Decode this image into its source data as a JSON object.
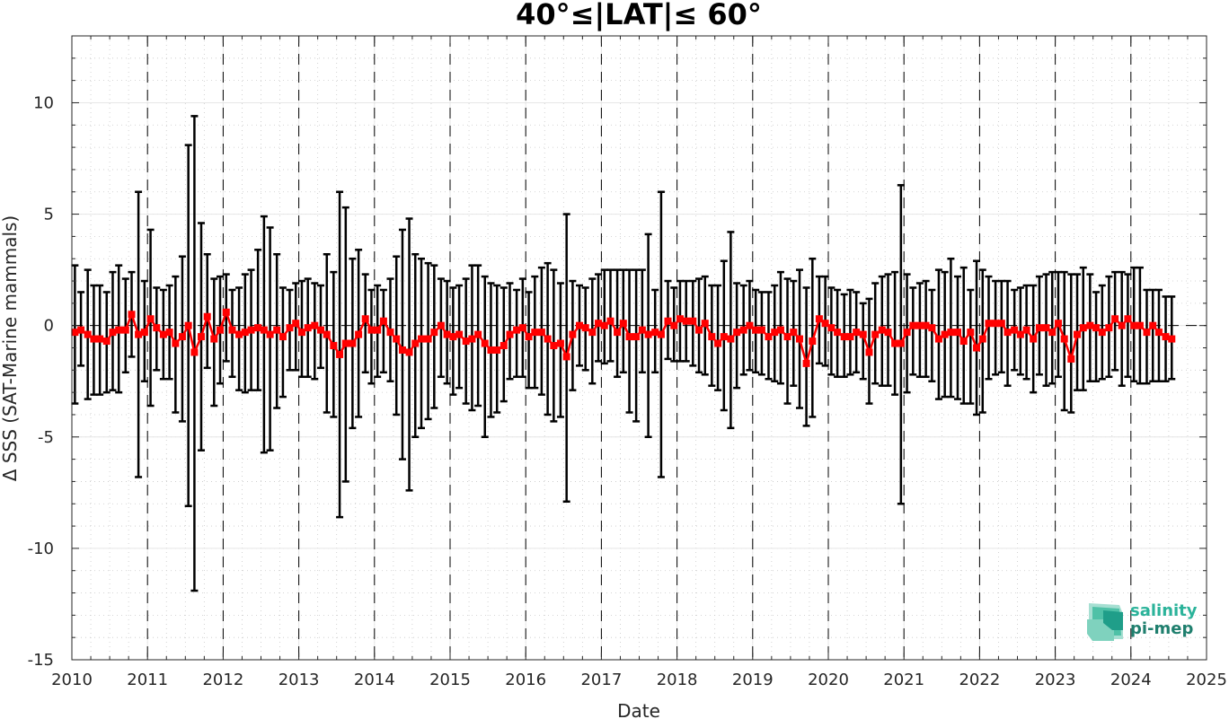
{
  "chart_data": {
    "type": "line",
    "title": "40°≤|LAT|≤ 60°",
    "xlabel": "Date",
    "ylabel": "Δ SSS (SAT-Marine mammals)",
    "xlim": [
      2010,
      2025
    ],
    "ylim": [
      -15,
      13
    ],
    "xticks": [
      "2010",
      "2011",
      "2012",
      "2013",
      "2014",
      "2015",
      "2016",
      "2017",
      "2018",
      "2019",
      "2020",
      "2021",
      "2022",
      "2023",
      "2024",
      "2025"
    ],
    "yticks": [
      "-15",
      "-10",
      "-5",
      "0",
      "5",
      "10"
    ],
    "year_dividers": [
      2011,
      2012,
      2013,
      2014,
      2015,
      2016,
      2017,
      2018,
      2019,
      2020,
      2021,
      2022,
      2023,
      2024
    ],
    "reference_line": 0,
    "grid": "on (minor dotted)",
    "series": [
      {
        "marker": "square",
        "color": "#ff0000",
        "errorbar_color": "#000000",
        "points": [
          [
            2010.04,
            -0.3,
            -3.5,
            2.7
          ],
          [
            2010.12,
            -0.2,
            -1.8,
            1.5
          ],
          [
            2010.21,
            -0.4,
            -3.3,
            2.5
          ],
          [
            2010.29,
            -0.6,
            -3.1,
            1.8
          ],
          [
            2010.37,
            -0.6,
            -3.1,
            1.8
          ],
          [
            2010.46,
            -0.7,
            -3.0,
            1.5
          ],
          [
            2010.54,
            -0.3,
            -2.9,
            2.4
          ],
          [
            2010.62,
            -0.2,
            -3.0,
            2.7
          ],
          [
            2010.71,
            -0.2,
            -2.1,
            2.1
          ],
          [
            2010.79,
            0.5,
            -1.4,
            2.4
          ],
          [
            2010.88,
            -0.4,
            -6.8,
            6.0
          ],
          [
            2010.96,
            -0.3,
            -2.5,
            2.0
          ],
          [
            2011.04,
            0.3,
            -3.6,
            4.3
          ],
          [
            2011.12,
            -0.1,
            -2.0,
            1.7
          ],
          [
            2011.21,
            -0.4,
            -2.4,
            1.6
          ],
          [
            2011.29,
            -0.3,
            -2.4,
            1.8
          ],
          [
            2011.37,
            -0.8,
            -3.9,
            2.2
          ],
          [
            2011.46,
            -0.5,
            -4.3,
            3.1
          ],
          [
            2011.54,
            0.0,
            -8.1,
            8.1
          ],
          [
            2011.62,
            -1.2,
            -11.9,
            9.4
          ],
          [
            2011.71,
            -0.5,
            -5.6,
            4.6
          ],
          [
            2011.79,
            0.4,
            -1.9,
            3.2
          ],
          [
            2011.88,
            -0.6,
            -3.6,
            2.1
          ],
          [
            2011.96,
            -0.2,
            -2.6,
            2.2
          ],
          [
            2012.04,
            0.6,
            -1.6,
            2.3
          ],
          [
            2012.12,
            -0.2,
            -2.3,
            1.6
          ],
          [
            2012.21,
            -0.4,
            -2.9,
            1.7
          ],
          [
            2012.29,
            -0.3,
            -3.0,
            2.3
          ],
          [
            2012.37,
            -0.2,
            -2.9,
            2.5
          ],
          [
            2012.46,
            -0.1,
            -2.9,
            3.4
          ],
          [
            2012.54,
            -0.2,
            -5.7,
            4.9
          ],
          [
            2012.62,
            -0.4,
            -5.6,
            4.4
          ],
          [
            2012.71,
            -0.2,
            -3.7,
            3.2
          ],
          [
            2012.79,
            -0.5,
            -3.2,
            1.7
          ],
          [
            2012.88,
            -0.1,
            -2.0,
            1.6
          ],
          [
            2012.96,
            0.1,
            -2.0,
            1.9
          ],
          [
            2013.04,
            -0.3,
            -2.3,
            2.0
          ],
          [
            2013.12,
            -0.1,
            -2.3,
            2.1
          ],
          [
            2013.21,
            0.0,
            -2.4,
            1.9
          ],
          [
            2013.29,
            -0.2,
            -1.9,
            1.8
          ],
          [
            2013.37,
            -0.4,
            -3.9,
            3.2
          ],
          [
            2013.46,
            -0.9,
            -4.1,
            2.4
          ],
          [
            2013.54,
            -1.3,
            -8.6,
            6.0
          ],
          [
            2013.62,
            -0.8,
            -7.0,
            5.3
          ],
          [
            2013.71,
            -0.8,
            -4.6,
            3.0
          ],
          [
            2013.79,
            -0.4,
            -4.1,
            3.4
          ],
          [
            2013.88,
            0.3,
            -2.1,
            2.3
          ],
          [
            2013.96,
            -0.2,
            -2.6,
            1.6
          ],
          [
            2014.04,
            -0.2,
            -2.3,
            1.8
          ],
          [
            2014.12,
            0.2,
            -2.1,
            1.6
          ],
          [
            2014.21,
            -0.3,
            -2.5,
            2.1
          ],
          [
            2014.29,
            -0.6,
            -4.0,
            3.1
          ],
          [
            2014.37,
            -1.1,
            -6.0,
            4.3
          ],
          [
            2014.46,
            -1.2,
            -7.4,
            4.8
          ],
          [
            2014.54,
            -0.8,
            -5.0,
            3.2
          ],
          [
            2014.62,
            -0.6,
            -4.6,
            3.0
          ],
          [
            2014.71,
            -0.6,
            -4.2,
            2.8
          ],
          [
            2014.79,
            -0.3,
            -3.7,
            2.7
          ],
          [
            2014.88,
            0.0,
            -2.3,
            2.1
          ],
          [
            2014.96,
            -0.4,
            -2.6,
            2.0
          ],
          [
            2015.04,
            -0.5,
            -3.1,
            1.7
          ],
          [
            2015.12,
            -0.4,
            -2.8,
            1.8
          ],
          [
            2015.21,
            -0.7,
            -3.5,
            2.1
          ],
          [
            2015.29,
            -0.6,
            -3.8,
            2.7
          ],
          [
            2015.37,
            -0.4,
            -3.6,
            2.7
          ],
          [
            2015.46,
            -0.8,
            -5.0,
            2.2
          ],
          [
            2015.54,
            -1.1,
            -4.1,
            1.9
          ],
          [
            2015.62,
            -1.1,
            -3.9,
            1.8
          ],
          [
            2015.71,
            -0.9,
            -3.4,
            1.7
          ],
          [
            2015.79,
            -0.4,
            -2.4,
            1.9
          ],
          [
            2015.88,
            -0.2,
            -2.3,
            1.6
          ],
          [
            2015.96,
            -0.1,
            -2.3,
            2.1
          ],
          [
            2016.04,
            -0.5,
            -2.8,
            1.5
          ],
          [
            2016.12,
            -0.3,
            -2.8,
            2.2
          ],
          [
            2016.21,
            -0.3,
            -3.1,
            2.6
          ],
          [
            2016.29,
            -0.6,
            -4.0,
            2.8
          ],
          [
            2016.37,
            -0.9,
            -4.3,
            2.5
          ],
          [
            2016.46,
            -0.8,
            -4.1,
            1.9
          ],
          [
            2016.54,
            -1.4,
            -7.9,
            5.0
          ],
          [
            2016.62,
            -0.4,
            -2.9,
            2.0
          ],
          [
            2016.71,
            0.0,
            -1.8,
            1.8
          ],
          [
            2016.79,
            -0.1,
            -2.0,
            1.7
          ],
          [
            2016.88,
            -0.3,
            -2.6,
            2.1
          ],
          [
            2016.96,
            0.1,
            -1.6,
            2.3
          ],
          [
            2017.04,
            0.0,
            -1.7,
            2.5
          ],
          [
            2017.12,
            0.2,
            -1.6,
            2.5
          ],
          [
            2017.21,
            -0.3,
            -2.3,
            2.5
          ],
          [
            2017.29,
            0.1,
            -2.1,
            2.5
          ],
          [
            2017.37,
            -0.5,
            -3.9,
            2.5
          ],
          [
            2017.46,
            -0.5,
            -4.3,
            2.5
          ],
          [
            2017.54,
            -0.2,
            -2.1,
            2.5
          ],
          [
            2017.62,
            -0.4,
            -5.0,
            4.1
          ],
          [
            2017.71,
            -0.3,
            -2.1,
            1.6
          ],
          [
            2017.79,
            -0.4,
            -6.8,
            6.0
          ],
          [
            2017.88,
            0.2,
            -1.5,
            2.0
          ],
          [
            2017.96,
            0.0,
            -1.6,
            1.7
          ],
          [
            2018.04,
            0.3,
            -1.6,
            2.0
          ],
          [
            2018.12,
            0.2,
            -1.6,
            2.0
          ],
          [
            2018.21,
            0.2,
            -1.8,
            2.0
          ],
          [
            2018.29,
            -0.2,
            -2.1,
            2.1
          ],
          [
            2018.37,
            0.1,
            -2.2,
            2.2
          ],
          [
            2018.46,
            -0.5,
            -2.7,
            1.8
          ],
          [
            2018.54,
            -0.8,
            -2.9,
            1.8
          ],
          [
            2018.62,
            -0.5,
            -3.8,
            2.9
          ],
          [
            2018.71,
            -0.6,
            -4.6,
            4.2
          ],
          [
            2018.79,
            -0.3,
            -2.8,
            1.9
          ],
          [
            2018.88,
            -0.2,
            -2.2,
            1.8
          ],
          [
            2018.96,
            0.0,
            -2.0,
            2.0
          ],
          [
            2019.04,
            -0.2,
            -2.1,
            1.6
          ],
          [
            2019.12,
            -0.2,
            -2.2,
            1.5
          ],
          [
            2019.21,
            -0.5,
            -2.4,
            1.5
          ],
          [
            2019.29,
            -0.3,
            -2.5,
            1.8
          ],
          [
            2019.37,
            -0.2,
            -2.6,
            2.4
          ],
          [
            2019.46,
            -0.5,
            -3.5,
            2.1
          ],
          [
            2019.54,
            -0.3,
            -2.7,
            2.0
          ],
          [
            2019.62,
            -0.6,
            -3.7,
            2.5
          ],
          [
            2019.71,
            -1.7,
            -4.5,
            1.7
          ],
          [
            2019.79,
            -0.7,
            -4.1,
            3.0
          ],
          [
            2019.88,
            0.3,
            -1.7,
            2.2
          ],
          [
            2019.96,
            0.1,
            -1.8,
            2.2
          ],
          [
            2020.04,
            -0.1,
            -2.2,
            1.7
          ],
          [
            2020.12,
            -0.3,
            -2.3,
            1.6
          ],
          [
            2020.21,
            -0.5,
            -2.3,
            1.4
          ],
          [
            2020.29,
            -0.5,
            -2.2,
            1.6
          ],
          [
            2020.37,
            -0.3,
            -2.1,
            1.5
          ],
          [
            2020.46,
            -0.4,
            -2.4,
            1.0
          ],
          [
            2020.54,
            -1.2,
            -3.5,
            1.2
          ],
          [
            2020.62,
            -0.4,
            -2.6,
            1.9
          ],
          [
            2020.71,
            -0.2,
            -2.7,
            2.2
          ],
          [
            2020.79,
            -0.3,
            -2.7,
            2.3
          ],
          [
            2020.88,
            -0.8,
            -3.1,
            2.4
          ],
          [
            2020.96,
            -0.8,
            -8.0,
            6.3
          ],
          [
            2021.04,
            -0.3,
            -3.0,
            2.3
          ],
          [
            2021.12,
            0.0,
            -2.2,
            1.7
          ],
          [
            2021.21,
            0.0,
            -2.3,
            1.9
          ],
          [
            2021.29,
            0.0,
            -2.3,
            2.0
          ],
          [
            2021.37,
            -0.1,
            -2.5,
            1.6
          ],
          [
            2021.46,
            -0.6,
            -3.3,
            2.5
          ],
          [
            2021.54,
            -0.4,
            -3.2,
            2.4
          ],
          [
            2021.62,
            -0.3,
            -3.2,
            3.0
          ],
          [
            2021.71,
            -0.3,
            -3.3,
            2.2
          ],
          [
            2021.79,
            -0.7,
            -3.5,
            2.6
          ],
          [
            2021.88,
            -0.3,
            -3.5,
            1.6
          ],
          [
            2021.96,
            -1.0,
            -4.0,
            2.9
          ],
          [
            2022.04,
            -0.6,
            -3.9,
            2.5
          ],
          [
            2022.12,
            0.1,
            -2.4,
            2.2
          ],
          [
            2022.21,
            0.1,
            -2.2,
            2.0
          ],
          [
            2022.29,
            0.1,
            -2.1,
            2.0
          ],
          [
            2022.37,
            -0.3,
            -2.7,
            2.0
          ],
          [
            2022.46,
            -0.2,
            -2.0,
            1.6
          ],
          [
            2022.54,
            -0.4,
            -2.2,
            1.7
          ],
          [
            2022.62,
            -0.2,
            -2.4,
            1.8
          ],
          [
            2022.71,
            -0.6,
            -3.0,
            1.8
          ],
          [
            2022.79,
            -0.1,
            -2.2,
            2.2
          ],
          [
            2022.88,
            -0.1,
            -2.7,
            2.3
          ],
          [
            2022.96,
            -0.3,
            -2.6,
            2.4
          ],
          [
            2023.04,
            0.1,
            -2.3,
            2.4
          ],
          [
            2023.12,
            -0.6,
            -3.8,
            2.4
          ],
          [
            2023.21,
            -1.5,
            -3.9,
            2.3
          ],
          [
            2023.29,
            -0.4,
            -2.9,
            2.3
          ],
          [
            2023.37,
            -0.1,
            -2.9,
            2.6
          ],
          [
            2023.46,
            0.0,
            -2.5,
            2.3
          ],
          [
            2023.54,
            -0.1,
            -2.5,
            1.5
          ],
          [
            2023.62,
            -0.3,
            -2.4,
            1.8
          ],
          [
            2023.71,
            -0.1,
            -2.3,
            2.2
          ],
          [
            2023.79,
            0.3,
            -2.0,
            2.4
          ],
          [
            2023.88,
            0.0,
            -2.7,
            2.4
          ],
          [
            2023.96,
            0.3,
            -2.3,
            2.3
          ],
          [
            2024.04,
            0.0,
            -2.5,
            2.6
          ],
          [
            2024.12,
            0.0,
            -2.6,
            2.6
          ],
          [
            2024.21,
            -0.3,
            -2.6,
            1.6
          ],
          [
            2024.29,
            0.0,
            -2.5,
            1.6
          ],
          [
            2024.37,
            -0.3,
            -2.5,
            1.6
          ],
          [
            2024.46,
            -0.5,
            -2.5,
            1.3
          ],
          [
            2024.54,
            -0.6,
            -2.4,
            1.3
          ]
        ]
      }
    ],
    "logo": {
      "line1": "salinity",
      "line2": "pi-mep",
      "color": "#1f9e89"
    }
  }
}
